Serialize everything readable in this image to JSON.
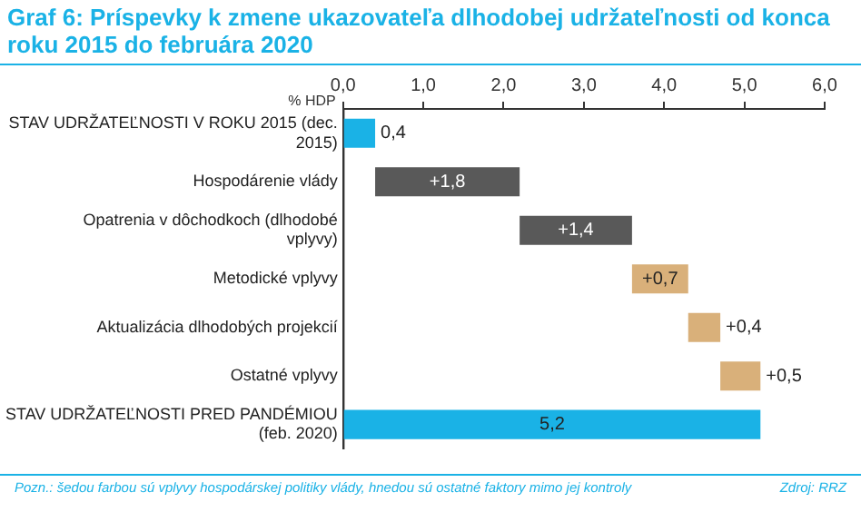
{
  "chart_data": {
    "type": "bar",
    "orientation": "horizontal",
    "title": "Graf 6: Príspevky k zmene ukazovateľa dlhodobej udržateľnosti od konca roku 2015 do februára 2020",
    "xlabel": "% HDP",
    "categories": [
      "STAV UDRŽATEĽNOSTI V ROKU 2015 (dec. 2015)",
      "Hospodárenie vlády",
      "Opatrenia v dôchodkoch (dlhodobé vplyvy)",
      "Metodické vplyvy",
      "Aktualizácia dlhodobých projekcií",
      "Ostatné vplyvy",
      "STAV UDRŽATEĽNOSTI PRED PANDÉMIOU (feb. 2020)"
    ],
    "values": [
      0.4,
      1.8,
      1.4,
      0.7,
      0.4,
      0.5,
      5.2
    ],
    "base": [
      0,
      0.4,
      2.2,
      3.6,
      4.3,
      4.7,
      0
    ],
    "colors": [
      "#1ab2e6",
      "#595959",
      "#595959",
      "#d9b07a",
      "#d9b07a",
      "#d9b07a",
      "#1ab2e6"
    ],
    "value_labels": [
      "0,4",
      "+1,8",
      "+1,4",
      "+0,7",
      "+0,4",
      "+0,5",
      "5,2"
    ],
    "xlim": [
      0,
      6
    ],
    "xticks": [
      {
        "value": 0,
        "label": "0,0"
      },
      {
        "value": 1,
        "label": "1,0"
      },
      {
        "value": 2,
        "label": "2,0"
      },
      {
        "value": 3,
        "label": "3,0"
      },
      {
        "value": 4,
        "label": "4,0"
      },
      {
        "value": 5,
        "label": "5,0"
      },
      {
        "value": 6,
        "label": "6,0"
      }
    ],
    "grid": false,
    "legend": false,
    "annotations": [
      "Pozn.: šedou farbou sú vplyvy hospodárskej politiky vlády, hnedou sú ostatné faktory mimo jej kontroly",
      "Zdroj: RRZ"
    ]
  }
}
